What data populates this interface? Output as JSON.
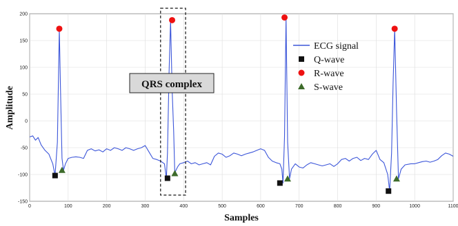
{
  "chart_data": {
    "type": "line",
    "xlabel": "Samples",
    "ylabel": "Amplitude",
    "xlim": [
      0,
      1100
    ],
    "ylim": [
      -150,
      200
    ],
    "xticks": [
      0,
      100,
      200,
      300,
      400,
      500,
      600,
      700,
      800,
      900,
      1000,
      1100
    ],
    "yticks": [
      -150,
      -100,
      -50,
      0,
      50,
      100,
      150,
      200
    ],
    "grid": true,
    "legend_position": "right",
    "colors": {
      "signal": "#3b55d9",
      "q": "#111111",
      "r": "#ee1111",
      "s": "#3d6b2a"
    },
    "series": [
      {
        "name": "ECG signal",
        "x": [
          0,
          8,
          15,
          22,
          30,
          40,
          50,
          60,
          66,
          72,
          77,
          80,
          84,
          88,
          93,
          100,
          110,
          120,
          130,
          140,
          150,
          160,
          170,
          180,
          190,
          200,
          210,
          220,
          230,
          240,
          250,
          260,
          270,
          280,
          290,
          300,
          310,
          320,
          330,
          340,
          350,
          355,
          358,
          362,
          366,
          370,
          374,
          377,
          380,
          385,
          390,
          400,
          410,
          420,
          430,
          440,
          450,
          460,
          470,
          480,
          490,
          500,
          510,
          520,
          530,
          540,
          550,
          560,
          570,
          580,
          590,
          600,
          610,
          620,
          630,
          640,
          650,
          655,
          658,
          662,
          666,
          670,
          675,
          680,
          690,
          700,
          710,
          720,
          730,
          740,
          750,
          760,
          770,
          780,
          790,
          800,
          810,
          820,
          830,
          840,
          850,
          860,
          870,
          880,
          890,
          900,
          910,
          920,
          930,
          935,
          940,
          944,
          948,
          953,
          958,
          965,
          975,
          990,
          1000,
          1010,
          1020,
          1030,
          1040,
          1050,
          1060,
          1070,
          1080,
          1090,
          1100
        ],
        "y": [
          -30,
          -28,
          -36,
          -31,
          -45,
          -55,
          -62,
          -80,
          -102,
          -40,
          172,
          60,
          -70,
          -92,
          -80,
          -70,
          -68,
          -67,
          -68,
          -70,
          -55,
          -52,
          -56,
          -54,
          -58,
          -52,
          -55,
          -50,
          -52,
          -55,
          -50,
          -52,
          -55,
          -52,
          -50,
          -46,
          -58,
          -70,
          -72,
          -75,
          -80,
          -107,
          -60,
          90,
          188,
          60,
          -20,
          -98,
          -92,
          -85,
          -80,
          -78,
          -75,
          -80,
          -78,
          -82,
          -80,
          -78,
          -82,
          -66,
          -60,
          -62,
          -68,
          -65,
          -60,
          -62,
          -65,
          -62,
          -60,
          -58,
          -55,
          -52,
          -55,
          -68,
          -75,
          -78,
          -80,
          -90,
          -116,
          -30,
          193,
          -40,
          -108,
          -90,
          -80,
          -86,
          -88,
          -82,
          -78,
          -80,
          -82,
          -84,
          -82,
          -80,
          -85,
          -80,
          -72,
          -70,
          -75,
          -70,
          -68,
          -74,
          -70,
          -72,
          -62,
          -55,
          -72,
          -78,
          -100,
          -131,
          -60,
          70,
          172,
          20,
          -108,
          -90,
          -82,
          -80,
          -80,
          -78,
          -76,
          -75,
          -77,
          -75,
          -72,
          -65,
          -60,
          -62,
          -66
        ]
      }
    ],
    "markers": [
      {
        "name": "Q-wave",
        "shape": "square",
        "x": [
          66,
          358,
          650,
          932
        ],
        "y": [
          -102,
          -107,
          -116,
          -131
        ]
      },
      {
        "name": "R-wave",
        "shape": "circle",
        "x": [
          77,
          370,
          662,
          948
        ],
        "y": [
          172,
          188,
          193,
          172
        ]
      },
      {
        "name": "S-wave",
        "shape": "triangle",
        "x": [
          84,
          377,
          670,
          953
        ],
        "y": [
          -92,
          -98,
          -108,
          -108
        ]
      }
    ],
    "annotation": {
      "label": "QRS complex",
      "x_range": [
        340,
        405
      ]
    }
  }
}
